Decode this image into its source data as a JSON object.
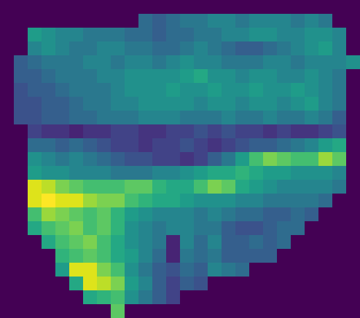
{
  "chart_data": {
    "type": "heatmap",
    "color": "viridis",
    "zlim": [
      0,
      1
    ],
    "tick_labels": false,
    "cells": [
      [
        0,
        0,
        0,
        0,
        0,
        0,
        0,
        0,
        0,
        0,
        0,
        0,
        0,
        0,
        0,
        0,
        0,
        0,
        0,
        0,
        0,
        0,
        0,
        0,
        0,
        0
      ],
      [
        0,
        0,
        0,
        0,
        0,
        0,
        0,
        0,
        0,
        0,
        0.35,
        0.3,
        0.35,
        0.4,
        0.4,
        0.45,
        0.45,
        0.4,
        0.45,
        0.45,
        0.45,
        0.4,
        0.45,
        0.4,
        0,
        0
      ],
      [
        0,
        0,
        0.55,
        0.5,
        0.45,
        0.45,
        0.4,
        0.4,
        0.4,
        0.35,
        0.35,
        0.3,
        0.35,
        0.35,
        0.4,
        0.4,
        0.45,
        0.45,
        0.5,
        0.5,
        0.45,
        0.45,
        0.5,
        0.5,
        0.45,
        0
      ],
      [
        0,
        0,
        0.45,
        0.5,
        0.45,
        0.4,
        0.4,
        0.45,
        0.45,
        0.4,
        0.4,
        0.35,
        0.35,
        0.4,
        0.45,
        0.4,
        0.35,
        0.3,
        0.3,
        0.35,
        0.4,
        0.45,
        0.5,
        0.55,
        0.45,
        0
      ],
      [
        0,
        0.3,
        0.35,
        0.4,
        0.4,
        0.4,
        0.45,
        0.45,
        0.4,
        0.45,
        0.45,
        0.4,
        0.45,
        0.5,
        0.45,
        0.45,
        0.4,
        0.4,
        0.4,
        0.45,
        0.45,
        0.4,
        0.45,
        0.45,
        0.45,
        0.5
      ],
      [
        0,
        0.3,
        0.3,
        0.35,
        0.4,
        0.4,
        0.4,
        0.45,
        0.45,
        0.5,
        0.5,
        0.5,
        0.5,
        0.55,
        0.6,
        0.5,
        0.5,
        0.45,
        0.5,
        0.5,
        0.45,
        0.45,
        0.5,
        0.45,
        0.4,
        0
      ],
      [
        0,
        0.25,
        0.3,
        0.3,
        0.35,
        0.4,
        0.4,
        0.4,
        0.45,
        0.5,
        0.5,
        0.5,
        0.55,
        0.5,
        0.5,
        0.55,
        0.5,
        0.5,
        0.55,
        0.5,
        0.5,
        0.55,
        0.5,
        0.45,
        0.4,
        0
      ],
      [
        0,
        0.25,
        0.25,
        0.3,
        0.3,
        0.35,
        0.4,
        0.4,
        0.45,
        0.45,
        0.5,
        0.5,
        0.5,
        0.5,
        0.45,
        0.5,
        0.5,
        0.45,
        0.5,
        0.5,
        0.45,
        0.5,
        0.55,
        0.45,
        0.4,
        0
      ],
      [
        0,
        0.25,
        0.25,
        0.3,
        0.3,
        0.35,
        0.35,
        0.4,
        0.4,
        0.4,
        0.45,
        0.45,
        0.45,
        0.4,
        0.4,
        0.4,
        0.45,
        0.4,
        0.4,
        0.45,
        0.4,
        0.4,
        0.45,
        0.4,
        0.3,
        0
      ],
      [
        0,
        0,
        0.2,
        0.15,
        0.15,
        0.1,
        0.15,
        0.15,
        0.2,
        0.2,
        0.15,
        0.15,
        0.2,
        0.2,
        0.25,
        0.2,
        0.25,
        0.2,
        0.2,
        0.15,
        0.2,
        0.15,
        0.15,
        0.2,
        0.25,
        0
      ],
      [
        0,
        0,
        0.35,
        0.35,
        0.3,
        0.35,
        0.3,
        0.25,
        0.2,
        0.2,
        0.15,
        0.2,
        0.2,
        0.25,
        0.2,
        0.15,
        0.2,
        0.25,
        0.3,
        0.3,
        0.35,
        0.4,
        0.45,
        0.55,
        0.6,
        0
      ],
      [
        0,
        0,
        0.5,
        0.45,
        0.4,
        0.45,
        0.4,
        0.35,
        0.3,
        0.25,
        0.25,
        0.2,
        0.2,
        0.15,
        0.2,
        0.3,
        0.4,
        0.55,
        0.7,
        0.8,
        0.75,
        0.7,
        0.7,
        0.85,
        0.75,
        0
      ],
      [
        0,
        0,
        0.55,
        0.5,
        0.5,
        0.45,
        0.45,
        0.45,
        0.4,
        0.4,
        0.4,
        0.45,
        0.45,
        0.5,
        0.55,
        0.6,
        0.6,
        0.65,
        0.6,
        0.55,
        0.55,
        0.5,
        0.5,
        0.5,
        0.45,
        0
      ],
      [
        0,
        0,
        0.95,
        0.9,
        0.8,
        0.75,
        0.7,
        0.7,
        0.7,
        0.75,
        0.75,
        0.65,
        0.6,
        0.6,
        0.7,
        0.8,
        0.75,
        0.6,
        0.55,
        0.5,
        0.45,
        0.45,
        0.45,
        0.45,
        0.4,
        0
      ],
      [
        0,
        0,
        0.95,
        1.0,
        0.95,
        0.95,
        0.85,
        0.8,
        0.8,
        0.7,
        0.65,
        0.6,
        0.6,
        0.55,
        0.5,
        0.5,
        0.5,
        0.45,
        0.45,
        0.4,
        0.4,
        0.4,
        0.4,
        0.35,
        0,
        0
      ],
      [
        0,
        0,
        0.7,
        0.85,
        0.8,
        0.75,
        0.7,
        0.75,
        0.65,
        0.55,
        0.5,
        0.45,
        0.45,
        0.45,
        0.4,
        0.45,
        0.4,
        0.35,
        0.35,
        0.3,
        0.3,
        0.35,
        0.3,
        0,
        0,
        0
      ],
      [
        0,
        0,
        0.6,
        0.7,
        0.75,
        0.8,
        0.7,
        0.75,
        0.65,
        0.5,
        0.45,
        0.4,
        0.45,
        0.45,
        0.4,
        0.4,
        0.3,
        0.25,
        0.25,
        0.3,
        0.35,
        0.35,
        0,
        0,
        0,
        0
      ],
      [
        0,
        0,
        0,
        0.6,
        0.7,
        0.75,
        0.8,
        0.7,
        0.6,
        0.5,
        0.45,
        0.4,
        0.1,
        0.45,
        0.35,
        0.45,
        0.3,
        0.3,
        0.35,
        0.3,
        0.35,
        0,
        0,
        0,
        0,
        0
      ],
      [
        0,
        0,
        0,
        0,
        0.65,
        0.7,
        0.75,
        0.7,
        0.6,
        0.55,
        0.45,
        0.35,
        0.1,
        0.4,
        0.35,
        0.4,
        0.3,
        0.3,
        0.3,
        0.3,
        0,
        0,
        0,
        0,
        0,
        0
      ],
      [
        0,
        0,
        0,
        0,
        0.55,
        0.95,
        0.95,
        0.8,
        0.7,
        0.5,
        0.4,
        0.3,
        0.25,
        0.35,
        0.3,
        0.45,
        0.4,
        0.35,
        0,
        0,
        0,
        0,
        0,
        0,
        0,
        0
      ],
      [
        0,
        0,
        0,
        0,
        0,
        0.6,
        0.95,
        0.9,
        0.8,
        0.55,
        0.45,
        0.3,
        0.2,
        0.3,
        0.25,
        0,
        0,
        0,
        0,
        0,
        0,
        0,
        0,
        0,
        0,
        0
      ],
      [
        0,
        0,
        0,
        0,
        0,
        0,
        0.6,
        0.65,
        0.7,
        0.5,
        0.4,
        0.3,
        0.2,
        0,
        0,
        0,
        0,
        0,
        0,
        0,
        0,
        0,
        0,
        0,
        0,
        0
      ],
      [
        0,
        0,
        0,
        0,
        0,
        0,
        0,
        0,
        0.75,
        0,
        0,
        0,
        0,
        0,
        0,
        0,
        0,
        0,
        0,
        0,
        0,
        0,
        0,
        0,
        0,
        0
      ]
    ]
  }
}
